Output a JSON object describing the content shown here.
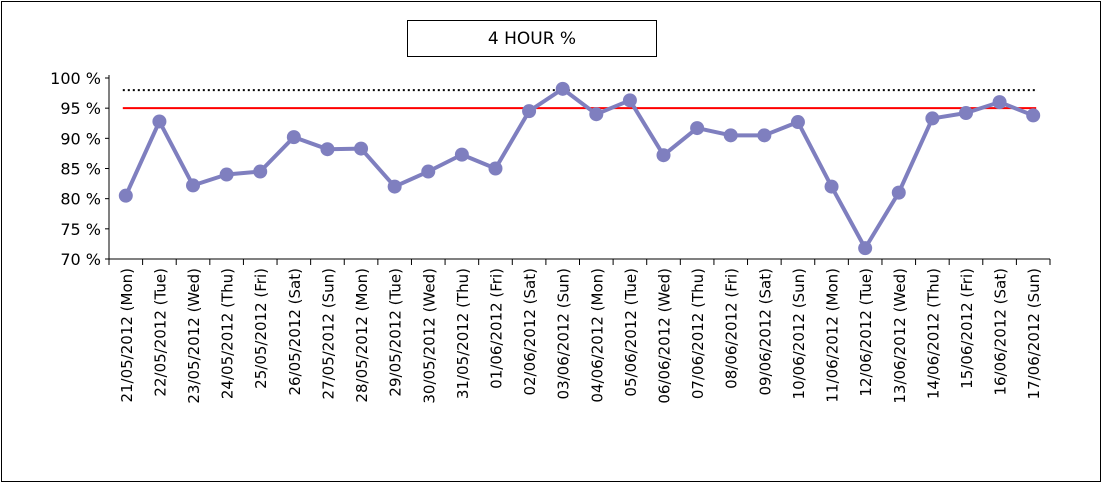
{
  "chart_data": {
    "type": "line",
    "title": "4 HOUR %",
    "xlabel": "",
    "ylabel": "",
    "ylim": [
      70,
      100
    ],
    "y_ticks": [
      "70 %",
      "75 %",
      "80 %",
      "85 %",
      "90 %",
      "95 %",
      "100 %"
    ],
    "y_tick_values": [
      70,
      75,
      80,
      85,
      90,
      95,
      100
    ],
    "categories": [
      "21/05/2012 (Mon)",
      "22/05/2012 (Tue)",
      "23/05/2012 (Wed)",
      "24/05/2012 (Thu)",
      "25/05/2012 (Fri)",
      "26/05/2012 (Sat)",
      "27/05/2012 (Sun)",
      "28/05/2012 (Mon)",
      "29/05/2012 (Tue)",
      "30/05/2012 (Wed)",
      "31/05/2012 (Thu)",
      "01/06/2012 (Fri)",
      "02/06/2012 (Sat)",
      "03/06/2012 (Sun)",
      "04/06/2012 (Mon)",
      "05/06/2012 (Tue)",
      "06/06/2012 (Wed)",
      "07/06/2012 (Thu)",
      "08/06/2012 (Fri)",
      "09/06/2012 (Sat)",
      "10/06/2012 (Sun)",
      "11/06/2012 (Mon)",
      "12/06/2012 (Tue)",
      "13/06/2012 (Wed)",
      "14/06/2012 (Thu)",
      "15/06/2012 (Fri)",
      "16/06/2012 (Sat)",
      "17/06/2012 (Sun)"
    ],
    "series": [
      {
        "values": [
          80.5,
          92.8,
          82.2,
          84.0,
          84.5,
          90.2,
          88.2,
          88.3,
          82.0,
          84.5,
          87.3,
          85.0,
          94.5,
          98.2,
          94.0,
          96.3,
          87.2,
          91.7,
          90.5,
          90.5,
          92.7,
          82.0,
          71.8,
          81.0,
          93.3,
          94.2,
          96.0,
          93.8
        ],
        "color": "#7f7fbf"
      }
    ],
    "reference_lines": [
      {
        "value": 95,
        "style": "solid",
        "color": "#ff0000"
      },
      {
        "value": 98,
        "style": "dotted",
        "color": "#000000"
      }
    ],
    "grid": false,
    "legend": "none"
  }
}
